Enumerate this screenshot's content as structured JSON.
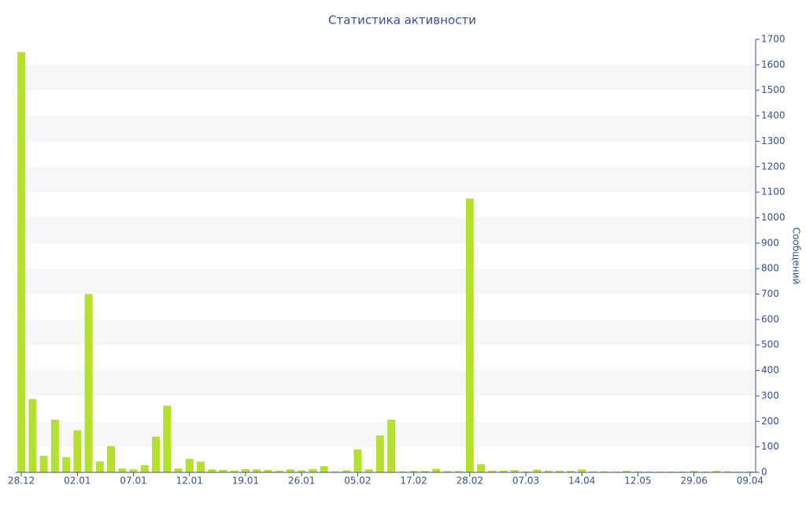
{
  "chart_data": {
    "type": "bar",
    "title": "Статистика активности",
    "y_label": "Сообщений",
    "categories": [
      "28.12",
      null,
      null,
      null,
      null,
      "02.01",
      null,
      null,
      null,
      null,
      "07.01",
      null,
      null,
      null,
      null,
      "12.01",
      null,
      null,
      null,
      null,
      "19.01",
      null,
      null,
      null,
      null,
      "26.01",
      null,
      null,
      null,
      null,
      "05.02",
      null,
      null,
      null,
      null,
      "17.02",
      null,
      null,
      null,
      null,
      "28.02",
      null,
      null,
      null,
      null,
      "07.03",
      null,
      null,
      null,
      null,
      "14.04",
      null,
      null,
      null,
      null,
      "12.05",
      null,
      null,
      null,
      null,
      "29.06",
      null,
      null,
      null,
      null,
      "09.04"
    ],
    "values": [
      1650,
      288,
      65,
      207,
      60,
      165,
      700,
      43,
      103,
      15,
      12,
      28,
      140,
      262,
      15,
      53,
      42,
      12,
      10,
      7,
      13,
      12,
      10,
      7,
      12,
      8,
      13,
      24,
      4,
      8,
      90,
      12,
      145,
      207,
      4,
      6,
      6,
      14,
      5,
      5,
      1075,
      32,
      7,
      7,
      9,
      4,
      11,
      7,
      6,
      6,
      12,
      4,
      4,
      3,
      6,
      4,
      3,
      3,
      3,
      3,
      6,
      3,
      6,
      4,
      3,
      4
    ],
    "color": "#b5e02e",
    "ylim": [
      0,
      1700
    ],
    "yticks": [
      0,
      100,
      200,
      300,
      400,
      500,
      600,
      700,
      800,
      900,
      1000,
      1100,
      1200,
      1300,
      1400,
      1500,
      1600,
      1700
    ],
    "y_axis_position": "right",
    "grid": "banded"
  }
}
